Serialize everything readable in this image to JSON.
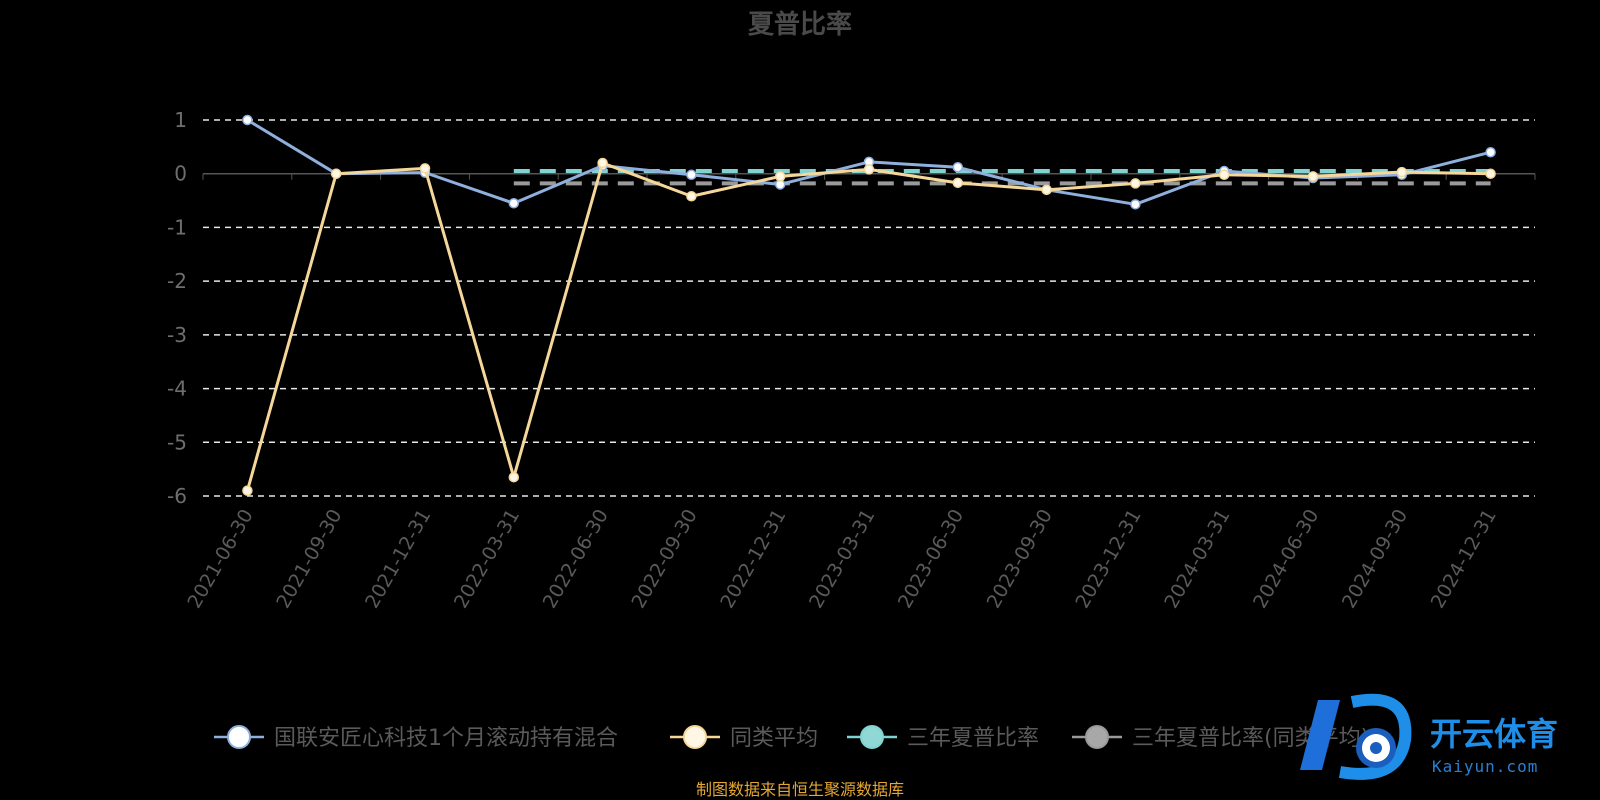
{
  "chart_data": {
    "type": "line",
    "title": "夏普比率",
    "categories": [
      "2021-06-30",
      "2021-09-30",
      "2021-12-31",
      "2022-03-31",
      "2022-06-30",
      "2022-09-30",
      "2022-12-31",
      "2023-03-31",
      "2023-06-30",
      "2023-09-30",
      "2023-12-31",
      "2024-03-31",
      "2024-06-30",
      "2024-09-30",
      "2024-12-31"
    ],
    "ylim": [
      -6,
      1
    ],
    "yticks": [
      1,
      0,
      -1,
      -2,
      -3,
      -4,
      -5,
      -6
    ],
    "grid": true,
    "legend_position": "bottom",
    "series": [
      {
        "name": "国联安匠心科技1个月滚动持有混合",
        "color": "#8fb0dd",
        "marker_fill": "#ffffff",
        "style": "solid",
        "values": [
          1.0,
          -0.0,
          0.02,
          -0.55,
          0.15,
          -0.02,
          -0.2,
          0.22,
          0.12,
          -0.3,
          -0.57,
          0.05,
          -0.08,
          -0.02,
          0.4
        ]
      },
      {
        "name": "同类平均",
        "color": "#f5d79a",
        "marker_fill": "#fff7e6",
        "style": "solid",
        "values": [
          -5.9,
          0.0,
          0.1,
          -5.65,
          0.2,
          -0.42,
          -0.05,
          0.08,
          -0.17,
          -0.3,
          -0.18,
          -0.02,
          -0.05,
          0.03,
          0.0
        ]
      },
      {
        "name": "三年夏普比率",
        "color": "#7fd3d0",
        "marker_fill": "#8fd8d6",
        "style": "dashed",
        "x_start": "2022-03-31",
        "x_end": "2024-12-31",
        "constant": 0.05
      },
      {
        "name": "三年夏普比率(同类平均)",
        "color": "#9a9a9a",
        "marker_fill": "#a8a8a8",
        "style": "dashed",
        "x_start": "2022-03-31",
        "x_end": "2024-12-31",
        "constant": -0.18
      }
    ]
  },
  "source_note": "制图数据来自恒生聚源数据库",
  "watermark": {
    "brand": "开云体育",
    "domain": "Kaiyun.com"
  }
}
